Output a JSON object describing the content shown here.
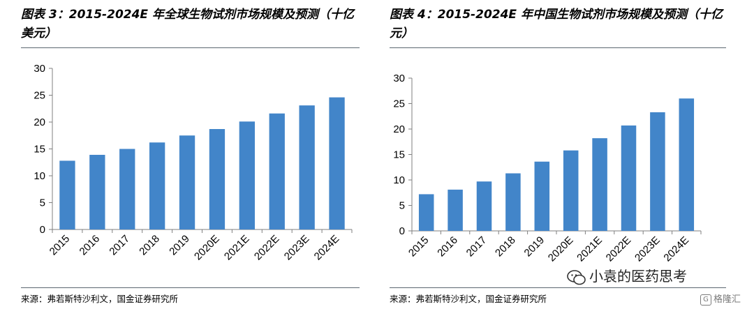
{
  "left": {
    "title": "图表 3：2015-2024E 年全球生物试剂市场规模及预测（十亿美元）",
    "source": "来源：弗若斯特沙利文，国金证券研究所"
  },
  "right": {
    "title": "图表 4：2015-2024E 年中国生物试剂市场规模及预测（十亿元）",
    "source": "来源：弗若斯特沙利文，国金证券研究所"
  },
  "watermark": {
    "text": "小袁的医药思考",
    "icon": "wechat-icon"
  },
  "brand": {
    "text": "格隆汇",
    "icon": "g-logo-icon"
  },
  "colors": {
    "bar": "#4285c9",
    "axis": "#7f7f7f",
    "rule": "#5b6770"
  },
  "chart_data": [
    {
      "type": "bar",
      "title": "2015-2024E 年全球生物试剂市场规模及预测（十亿美元）",
      "categories": [
        "2015",
        "2016",
        "2017",
        "2018",
        "2019",
        "2020E",
        "2021E",
        "2022E",
        "2023E",
        "2024E"
      ],
      "values": [
        12.8,
        13.9,
        15.0,
        16.2,
        17.5,
        18.7,
        20.1,
        21.6,
        23.1,
        24.6
      ],
      "yticks": [
        0,
        5,
        10,
        15,
        20,
        25,
        30
      ],
      "ylim": [
        0,
        30
      ],
      "xlabel": "",
      "ylabel": "",
      "grid": false
    },
    {
      "type": "bar",
      "title": "2015-2024E 年中国生物试剂市场规模及预测（十亿元）",
      "categories": [
        "2015",
        "2016",
        "2017",
        "2018",
        "2019",
        "2020E",
        "2021E",
        "2022E",
        "2023E",
        "2024E"
      ],
      "values": [
        7.2,
        8.1,
        9.7,
        11.3,
        13.6,
        15.8,
        18.2,
        20.7,
        23.3,
        26.0
      ],
      "yticks": [
        0,
        5,
        10,
        15,
        20,
        25,
        30
      ],
      "ylim": [
        0,
        30
      ],
      "xlabel": "",
      "ylabel": "",
      "grid": false
    }
  ]
}
